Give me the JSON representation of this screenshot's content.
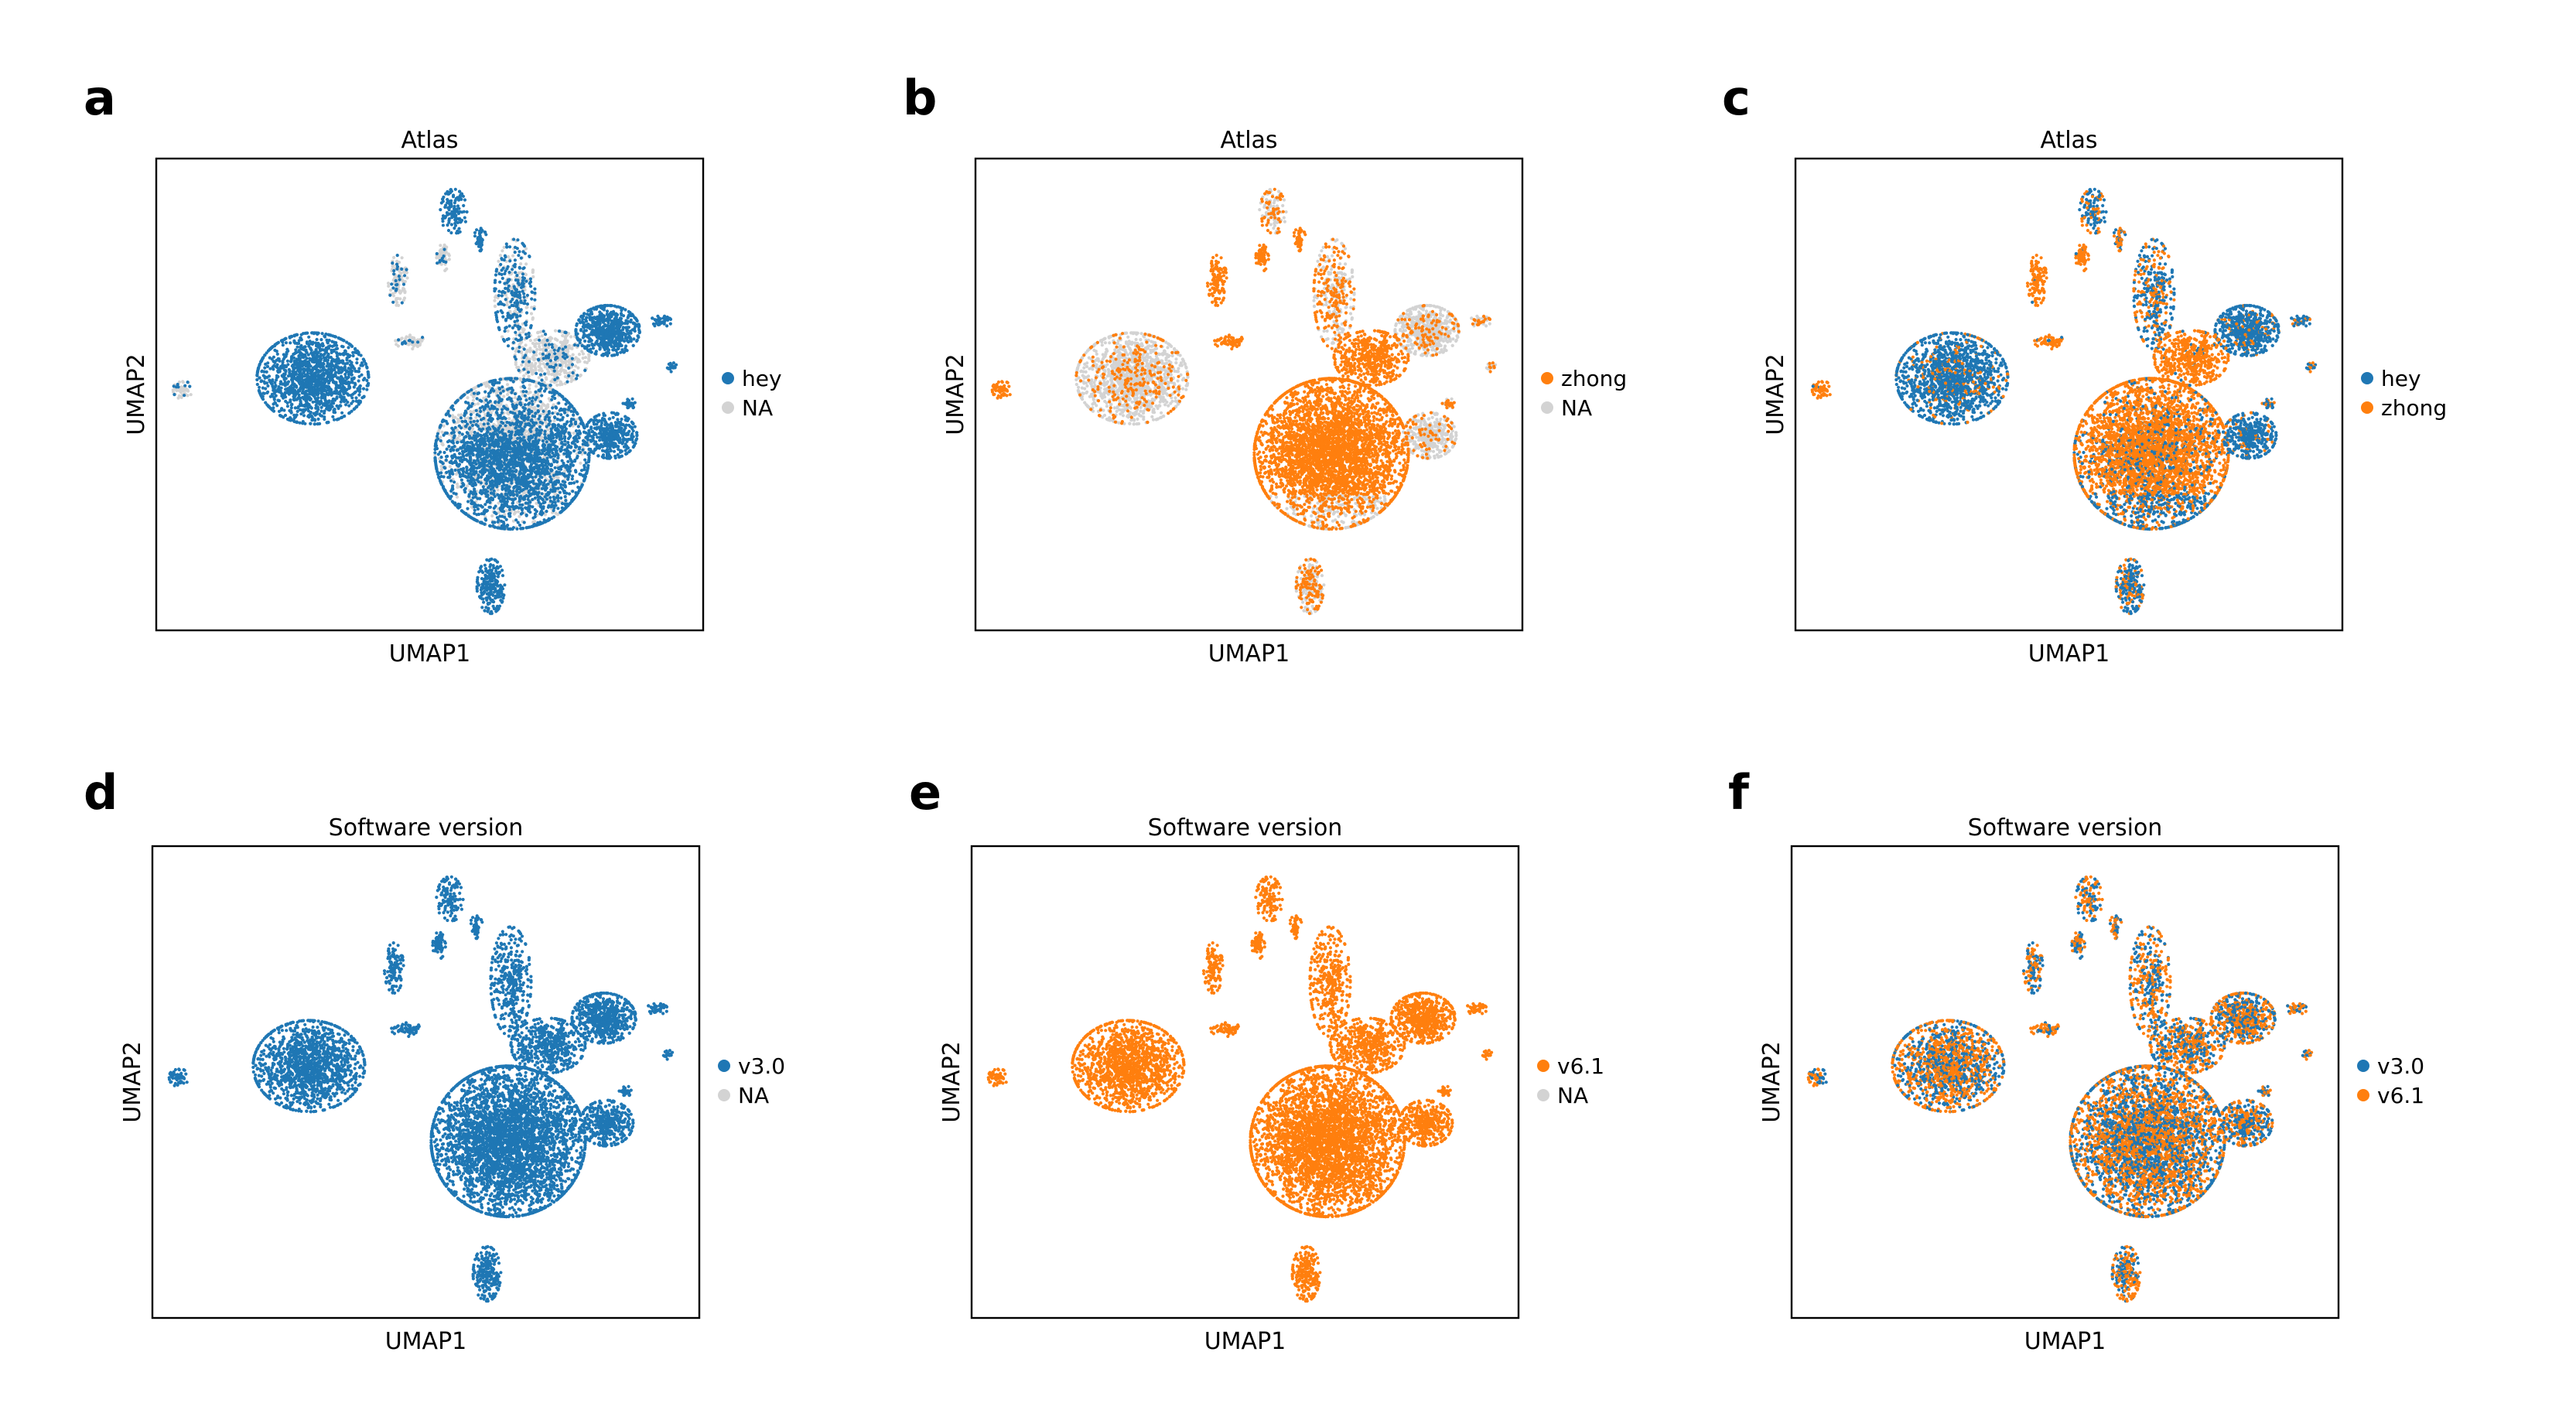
{
  "colors": {
    "blue": "#1f77b4",
    "orange": "#ff7f0e",
    "na": "#d3d3d3"
  },
  "panels": [
    {
      "letter": "a",
      "title": "Atlas",
      "xlabel": "UMAP1",
      "ylabel": "UMAP2",
      "legend": [
        {
          "label": "hey",
          "color": "#1f77b4"
        },
        {
          "label": "NA",
          "color": "#d3d3d3"
        }
      ]
    },
    {
      "letter": "b",
      "title": "Atlas",
      "xlabel": "UMAP1",
      "ylabel": "UMAP2",
      "legend": [
        {
          "label": "zhong",
          "color": "#ff7f0e"
        },
        {
          "label": "NA",
          "color": "#d3d3d3"
        }
      ]
    },
    {
      "letter": "c",
      "title": "Atlas",
      "xlabel": "UMAP1",
      "ylabel": "UMAP2",
      "legend": [
        {
          "label": "hey",
          "color": "#1f77b4"
        },
        {
          "label": "zhong",
          "color": "#ff7f0e"
        }
      ]
    },
    {
      "letter": "d",
      "title": "Software version",
      "xlabel": "UMAP1",
      "ylabel": "UMAP2",
      "legend": [
        {
          "label": "v3.0",
          "color": "#1f77b4"
        },
        {
          "label": "NA",
          "color": "#d3d3d3"
        }
      ]
    },
    {
      "letter": "e",
      "title": "Software version",
      "xlabel": "UMAP1",
      "ylabel": "UMAP2",
      "legend": [
        {
          "label": "v6.1",
          "color": "#ff7f0e"
        },
        {
          "label": "NA",
          "color": "#d3d3d3"
        }
      ]
    },
    {
      "letter": "f",
      "title": "Software version",
      "xlabel": "UMAP1",
      "ylabel": "UMAP2",
      "legend": [
        {
          "label": "v3.0",
          "color": "#1f77b4"
        },
        {
          "label": "v6.1",
          "color": "#ff7f0e"
        }
      ]
    }
  ],
  "chart_data": [
    {
      "type": "scatter",
      "panel": "a",
      "title": "Atlas",
      "xlabel": "UMAP1",
      "ylabel": "UMAP2",
      "grid": false,
      "legend_position": "right",
      "series": [
        {
          "name": "hey",
          "color": "#1f77b4"
        },
        {
          "name": "NA",
          "color": "#d3d3d3"
        }
      ]
    },
    {
      "type": "scatter",
      "panel": "b",
      "title": "Atlas",
      "xlabel": "UMAP1",
      "ylabel": "UMAP2",
      "grid": false,
      "legend_position": "right",
      "series": [
        {
          "name": "zhong",
          "color": "#ff7f0e"
        },
        {
          "name": "NA",
          "color": "#d3d3d3"
        }
      ]
    },
    {
      "type": "scatter",
      "panel": "c",
      "title": "Atlas",
      "xlabel": "UMAP1",
      "ylabel": "UMAP2",
      "grid": false,
      "legend_position": "right",
      "series": [
        {
          "name": "hey",
          "color": "#1f77b4"
        },
        {
          "name": "zhong",
          "color": "#ff7f0e"
        }
      ]
    },
    {
      "type": "scatter",
      "panel": "d",
      "title": "Software version",
      "xlabel": "UMAP1",
      "ylabel": "UMAP2",
      "grid": false,
      "legend_position": "right",
      "series": [
        {
          "name": "v3.0",
          "color": "#1f77b4"
        },
        {
          "name": "NA",
          "color": "#d3d3d3"
        }
      ]
    },
    {
      "type": "scatter",
      "panel": "e",
      "title": "Software version",
      "xlabel": "UMAP1",
      "ylabel": "UMAP2",
      "grid": false,
      "legend_position": "right",
      "series": [
        {
          "name": "v6.1",
          "color": "#ff7f0e"
        },
        {
          "name": "NA",
          "color": "#d3d3d3"
        }
      ]
    },
    {
      "type": "scatter",
      "panel": "f",
      "title": "Software version",
      "xlabel": "UMAP1",
      "ylabel": "UMAP2",
      "grid": false,
      "legend_position": "right",
      "series": [
        {
          "name": "v3.0",
          "color": "#1f77b4"
        },
        {
          "name": "v6.1",
          "color": "#ff7f0e"
        }
      ]
    }
  ]
}
